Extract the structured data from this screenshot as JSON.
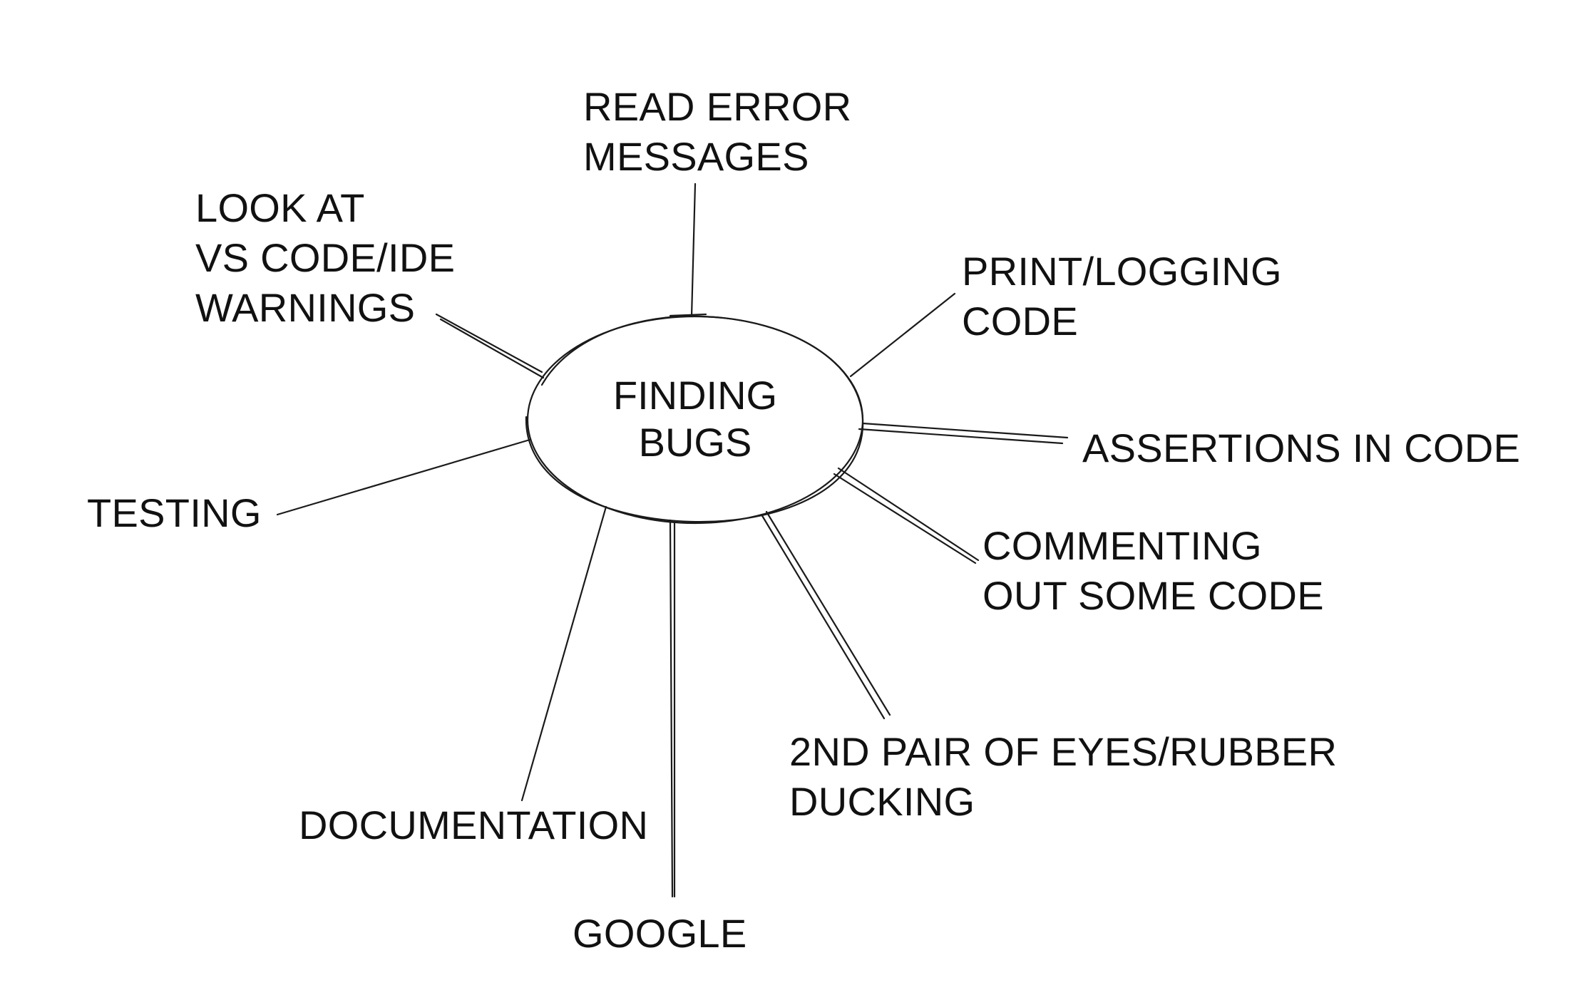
{
  "center": {
    "title_lines": [
      "FINDING",
      "BUGS"
    ]
  },
  "branches": {
    "read_errors": {
      "lines": [
        "READ ERROR",
        "MESSAGES"
      ]
    },
    "ide_warnings": {
      "lines": [
        "LOOK AT",
        "VS CODE/IDE",
        "WARNINGS"
      ]
    },
    "print_logging": {
      "lines": [
        "PRINT/LOGGING",
        "CODE"
      ]
    },
    "assertions": {
      "lines": [
        "ASSERTIONS IN CODE"
      ]
    },
    "commenting": {
      "lines": [
        "COMMENTING",
        "OUT SOME CODE"
      ]
    },
    "rubber_ducking": {
      "lines": [
        "2ND PAIR OF EYES/RUBBER",
        "DUCKING"
      ]
    },
    "testing": {
      "lines": [
        "TESTING"
      ]
    },
    "documentation": {
      "lines": [
        "DOCUMENTATION"
      ]
    },
    "google": {
      "lines": [
        "GOOGLE"
      ]
    }
  }
}
